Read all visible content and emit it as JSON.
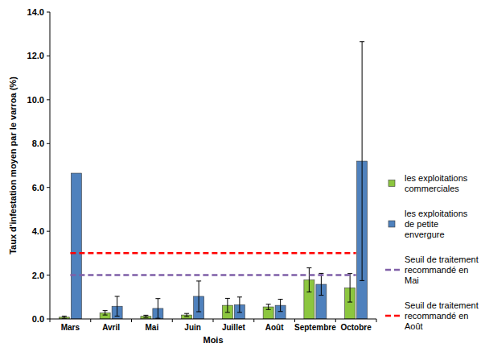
{
  "chart_data": {
    "type": "bar",
    "x_label": "Mois",
    "y_label": "Taux d'infestation moyen par le varroa (%)",
    "categories": [
      "Mars",
      "Avril",
      "Mai",
      "Juin",
      "Juillet",
      "Août",
      "Septembre",
      "Octobre"
    ],
    "ylim": [
      0,
      14
    ],
    "yticks": [
      {
        "value": 0,
        "label": "0.0"
      },
      {
        "value": 2,
        "label": "2.0"
      },
      {
        "value": 4,
        "label": "4.0"
      },
      {
        "value": 6,
        "label": "6.0"
      },
      {
        "value": 8,
        "label": "8.0"
      },
      {
        "value": 10,
        "label": "10.0"
      },
      {
        "value": 12,
        "label": "12.0"
      },
      {
        "value": 14,
        "label": "14.0"
      }
    ],
    "grid": false,
    "legend": "right",
    "series": [
      {
        "name": "les exploitations commerciales",
        "type": "bar",
        "color": "#8cc63f",
        "values": [
          0.08,
          0.28,
          0.12,
          0.18,
          0.62,
          0.55,
          1.78,
          1.42
        ],
        "errors": [
          0.05,
          0.1,
          0.05,
          0.07,
          0.32,
          0.12,
          0.55,
          0.65
        ]
      },
      {
        "name": "les exploitations de petite envergure",
        "type": "bar",
        "color": "#4f81bd",
        "values": [
          6.65,
          0.58,
          0.48,
          1.03,
          0.65,
          0.62,
          1.58,
          7.2
        ],
        "errors": [
          null,
          0.45,
          0.45,
          0.7,
          0.35,
          0.28,
          0.5,
          5.45
        ]
      },
      {
        "name": "Seuil de traitement recommandé en Mai",
        "type": "line",
        "color": "#7f5fa8",
        "line_style": "dashed",
        "values": [
          2,
          2,
          2,
          2,
          2,
          2,
          2,
          2
        ]
      },
      {
        "name": "Seuil de traitement recommandé en Août",
        "type": "line",
        "color": "#ff0000",
        "line_style": "dashed",
        "values": [
          3,
          3,
          3,
          3,
          3,
          3,
          3,
          3
        ]
      }
    ]
  }
}
